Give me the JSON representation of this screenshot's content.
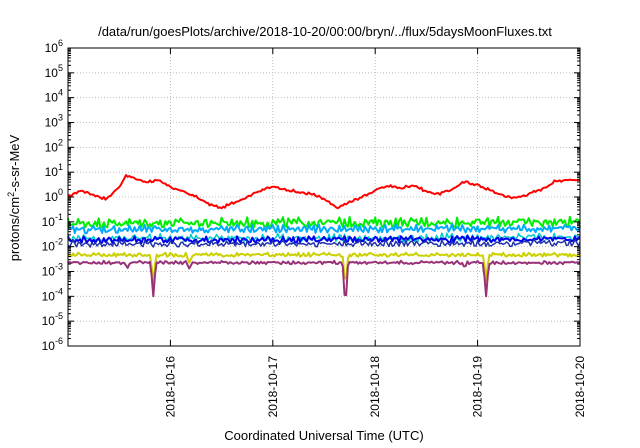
{
  "chart_data": {
    "type": "line",
    "title": "/data/run/goesPlots/archive/2018-10-20/00:00/bryn/../flux/5daysMoonFluxes.txt",
    "xlabel": "Coordinated Universal Time (UTC)",
    "ylabel": {
      "base": "protons/cm",
      "sup": "2",
      "rest": "-s-sr-MeV"
    },
    "y_scale": "log",
    "ylim": [
      1e-06,
      1000000.0
    ],
    "xlim": [
      "2018-10-15T00:00",
      "2018-10-20T00:00"
    ],
    "grid": true,
    "legend": "none",
    "x_ticks": [
      "2018-10-16",
      "2018-10-17",
      "2018-10-18",
      "2018-10-19",
      "2018-10-20"
    ],
    "y_ticks": [
      {
        "base": "10",
        "exp": "-6"
      },
      {
        "base": "10",
        "exp": "-5"
      },
      {
        "base": "10",
        "exp": "-4"
      },
      {
        "base": "10",
        "exp": "-3"
      },
      {
        "base": "10",
        "exp": "-2"
      },
      {
        "base": "10",
        "exp": "-1"
      },
      {
        "base": "10",
        "exp": "0"
      },
      {
        "base": "10",
        "exp": "1"
      },
      {
        "base": "10",
        "exp": "2"
      },
      {
        "base": "10",
        "exp": "3"
      },
      {
        "base": "10",
        "exp": "4"
      },
      {
        "base": "10",
        "exp": "5"
      },
      {
        "base": "10",
        "exp": "6"
      }
    ],
    "series": [
      {
        "color": "#ff0000",
        "width": 2,
        "noise": 0.04,
        "dips": [],
        "x": [
          "2018-10-15T00:00",
          "2018-10-15T03:00",
          "2018-10-15T06:00",
          "2018-10-15T09:00",
          "2018-10-15T12:00",
          "2018-10-15T13:30",
          "2018-10-15T15:00",
          "2018-10-15T18:00",
          "2018-10-15T21:00",
          "2018-10-16T00:00",
          "2018-10-16T03:00",
          "2018-10-16T06:00",
          "2018-10-16T09:00",
          "2018-10-16T12:00",
          "2018-10-16T15:00",
          "2018-10-16T18:00",
          "2018-10-16T21:00",
          "2018-10-17T00:00",
          "2018-10-17T03:00",
          "2018-10-17T06:00",
          "2018-10-17T09:00",
          "2018-10-17T12:00",
          "2018-10-17T15:00",
          "2018-10-17T18:00",
          "2018-10-17T21:00",
          "2018-10-18T00:00",
          "2018-10-18T03:00",
          "2018-10-18T06:00",
          "2018-10-18T09:00",
          "2018-10-18T12:00",
          "2018-10-18T15:00",
          "2018-10-18T18:00",
          "2018-10-18T21:00",
          "2018-10-19T00:00",
          "2018-10-19T03:00",
          "2018-10-19T06:00",
          "2018-10-19T09:00",
          "2018-10-19T12:00",
          "2018-10-19T15:00",
          "2018-10-19T18:00",
          "2018-10-19T21:00",
          "2018-10-20T00:00"
        ],
        "y": [
          1.0,
          1.8,
          1.2,
          0.8,
          2.5,
          7.0,
          6.0,
          4.0,
          4.5,
          2.5,
          1.6,
          1.0,
          0.5,
          0.35,
          0.6,
          1.0,
          1.8,
          2.5,
          2.0,
          1.5,
          1.3,
          0.8,
          0.35,
          0.6,
          1.0,
          1.8,
          2.8,
          2.2,
          3.0,
          1.6,
          1.3,
          2.0,
          4.0,
          3.0,
          1.8,
          1.1,
          0.9,
          1.3,
          2.0,
          4.0,
          5.0,
          4.6
        ]
      },
      {
        "color": "#00ee00",
        "width": 2,
        "noise": 0.15,
        "dips": [],
        "x": [
          "2018-10-15T00:00",
          "2018-10-20T00:00"
        ],
        "y": [
          0.08,
          0.09
        ]
      },
      {
        "color": "#00aaff",
        "width": 2,
        "noise": 0.12,
        "dips": [],
        "x": [
          "2018-10-15T00:00",
          "2018-10-20T00:00"
        ],
        "y": [
          0.045,
          0.05
        ]
      },
      {
        "color": "#00cccc",
        "width": 1.5,
        "noise": 0.12,
        "dips": [],
        "x": [
          "2018-10-15T00:00",
          "2018-10-20T00:00"
        ],
        "y": [
          0.02,
          0.022
        ]
      },
      {
        "color": "#0000ee",
        "width": 2,
        "noise": 0.1,
        "dips": [],
        "x": [
          "2018-10-15T00:00",
          "2018-10-20T00:00"
        ],
        "y": [
          0.017,
          0.019
        ]
      },
      {
        "color": "#2233aa",
        "width": 1.5,
        "noise": 0.1,
        "dips": [],
        "x": [
          "2018-10-15T00:00",
          "2018-10-20T00:00"
        ],
        "y": [
          0.012,
          0.013
        ]
      },
      {
        "color": "#ccd000",
        "width": 2,
        "noise": 0.06,
        "dips": [
          {
            "x": "2018-10-15T20:00",
            "y": 0.0003
          },
          {
            "x": "2018-10-16T04:30",
            "y": 0.002
          },
          {
            "x": "2018-10-17T17:00",
            "y": 0.0002
          },
          {
            "x": "2018-10-19T02:00",
            "y": 0.0004
          }
        ],
        "x": [
          "2018-10-15T00:00",
          "2018-10-20T00:00"
        ],
        "y": [
          0.0045,
          0.0045
        ]
      },
      {
        "color": "#993377",
        "width": 2,
        "noise": 0.05,
        "dips": [
          {
            "x": "2018-10-15T20:00",
            "y": 0.0001
          },
          {
            "x": "2018-10-16T04:30",
            "y": 0.0012
          },
          {
            "x": "2018-10-17T17:00",
            "y": 3e-05
          },
          {
            "x": "2018-10-19T02:00",
            "y": 0.0001
          },
          {
            "x": "2018-10-15T14:00",
            "y": 0.0014
          },
          {
            "x": "2018-10-18T21:00",
            "y": 0.0014
          }
        ],
        "x": [
          "2018-10-15T00:00",
          "2018-10-20T00:00"
        ],
        "y": [
          0.0022,
          0.0022
        ]
      }
    ]
  }
}
